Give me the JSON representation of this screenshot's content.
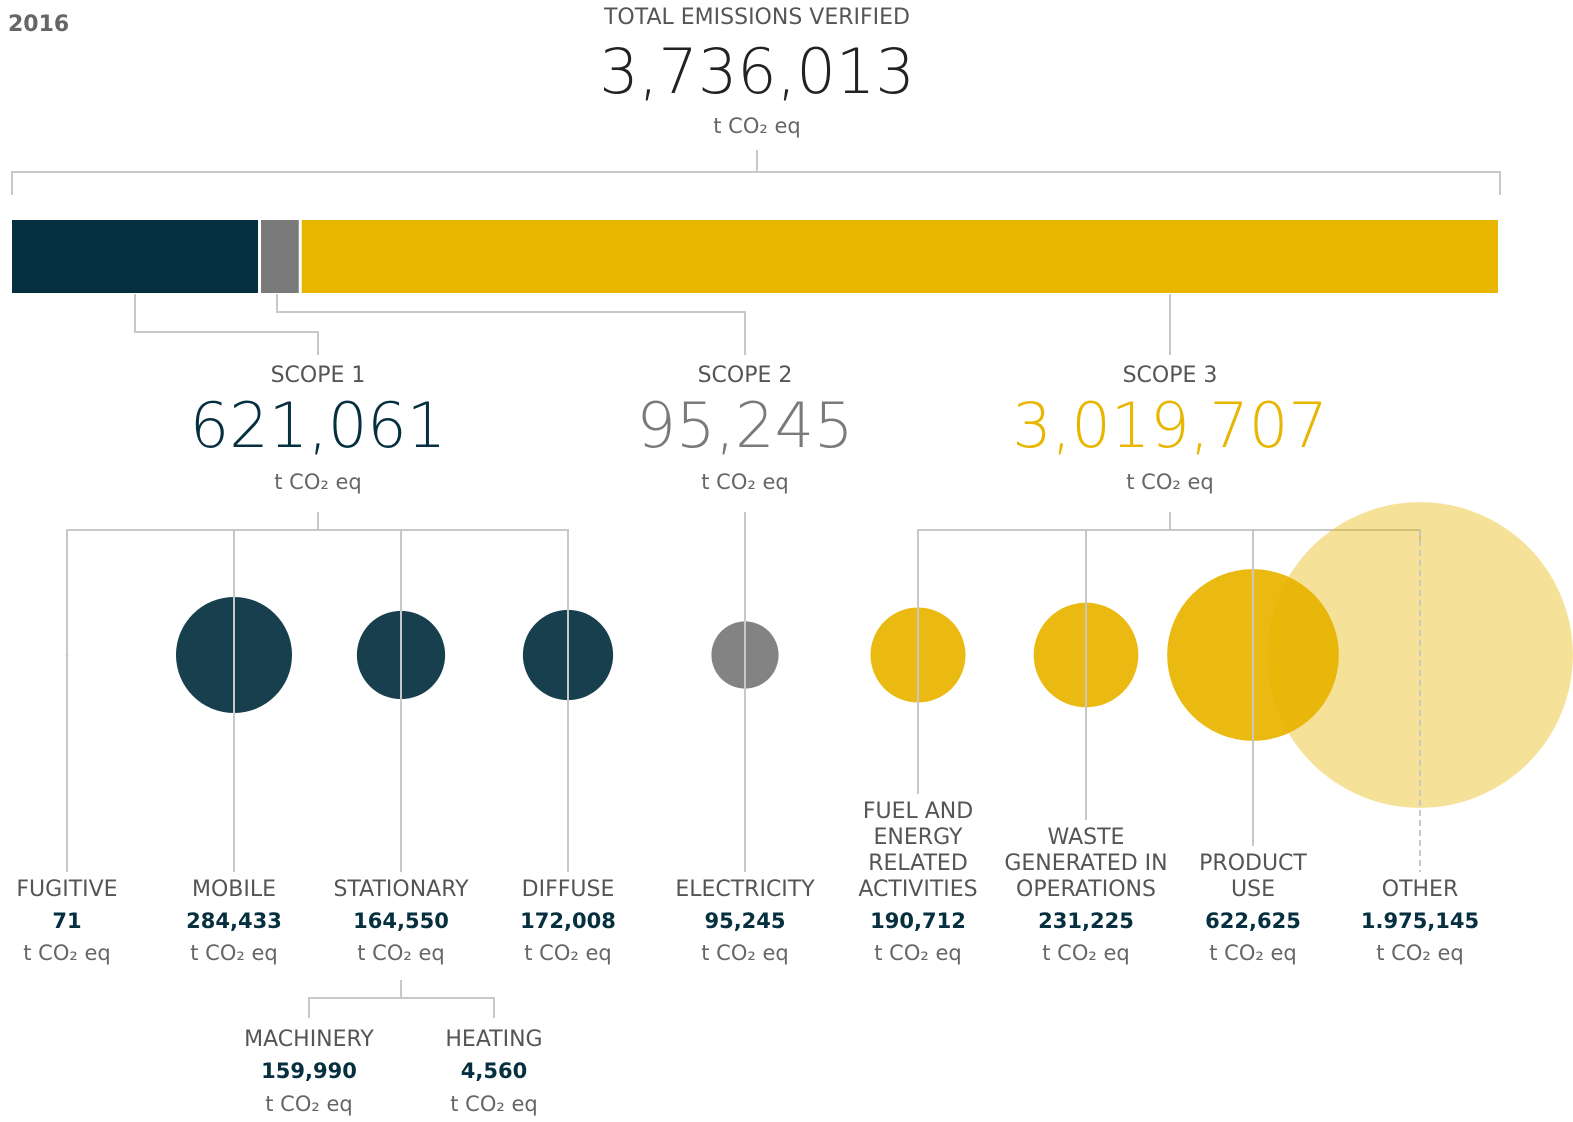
{
  "year": "2016",
  "total": {
    "title": "TOTAL EMISSIONS VERIFIED",
    "value": 3736013,
    "label": "3,736,013",
    "unit": "t CO₂ eq"
  },
  "scopes": [
    {
      "title": "SCOPE 1",
      "value": 621061,
      "label": "621,061",
      "unit": "t CO₂ eq",
      "color": "#06303f",
      "categories": [
        {
          "name": [
            "FUGITIVE"
          ],
          "value": 71,
          "label": "71",
          "unit": "t CO₂ eq"
        },
        {
          "name": [
            "MOBILE"
          ],
          "value": 284433,
          "label": "284,433",
          "unit": "t CO₂ eq"
        },
        {
          "name": [
            "STATIONARY"
          ],
          "value": 164550,
          "label": "164,550",
          "unit": "t CO₂ eq",
          "parts": [
            {
              "name": "MACHINERY",
              "value": 159990,
              "label": "159,990",
              "unit": "t CO₂ eq"
            },
            {
              "name": "HEATING",
              "value": 4560,
              "label": "4,560",
              "unit": "t CO₂ eq"
            }
          ]
        },
        {
          "name": [
            "DIFFUSE"
          ],
          "value": 172008,
          "label": "172,008",
          "unit": "t CO₂ eq"
        }
      ]
    },
    {
      "title": "SCOPE 2",
      "value": 95245,
      "label": "95,245",
      "unit": "t CO₂ eq",
      "color": "#7a7a7a",
      "categories": [
        {
          "name": [
            "ELECTRICITY"
          ],
          "value": 95245,
          "label": "95,245",
          "unit": "t CO₂ eq"
        }
      ]
    },
    {
      "title": "SCOPE 3",
      "value": 3019707,
      "label": "3,019,707",
      "unit": "t CO₂ eq",
      "color": "#e8b500",
      "categories": [
        {
          "name": [
            "FUEL AND",
            "ENERGY",
            "RELATED",
            "ACTIVITIES"
          ],
          "value": 190712,
          "label": "190,712",
          "unit": "t CO₂ eq"
        },
        {
          "name": [
            "WASTE",
            "GENERATED IN",
            "OPERATIONS"
          ],
          "value": 231225,
          "label": "231,225",
          "unit": "t CO₂ eq"
        },
        {
          "name": [
            "PRODUCT",
            "USE"
          ],
          "value": 622625,
          "label": "622,625",
          "unit": "t CO₂ eq"
        },
        {
          "name": [
            "OTHER"
          ],
          "value": 1975145,
          "label": "1.975,145",
          "unit": "t CO₂ eq"
        }
      ]
    }
  ]
}
